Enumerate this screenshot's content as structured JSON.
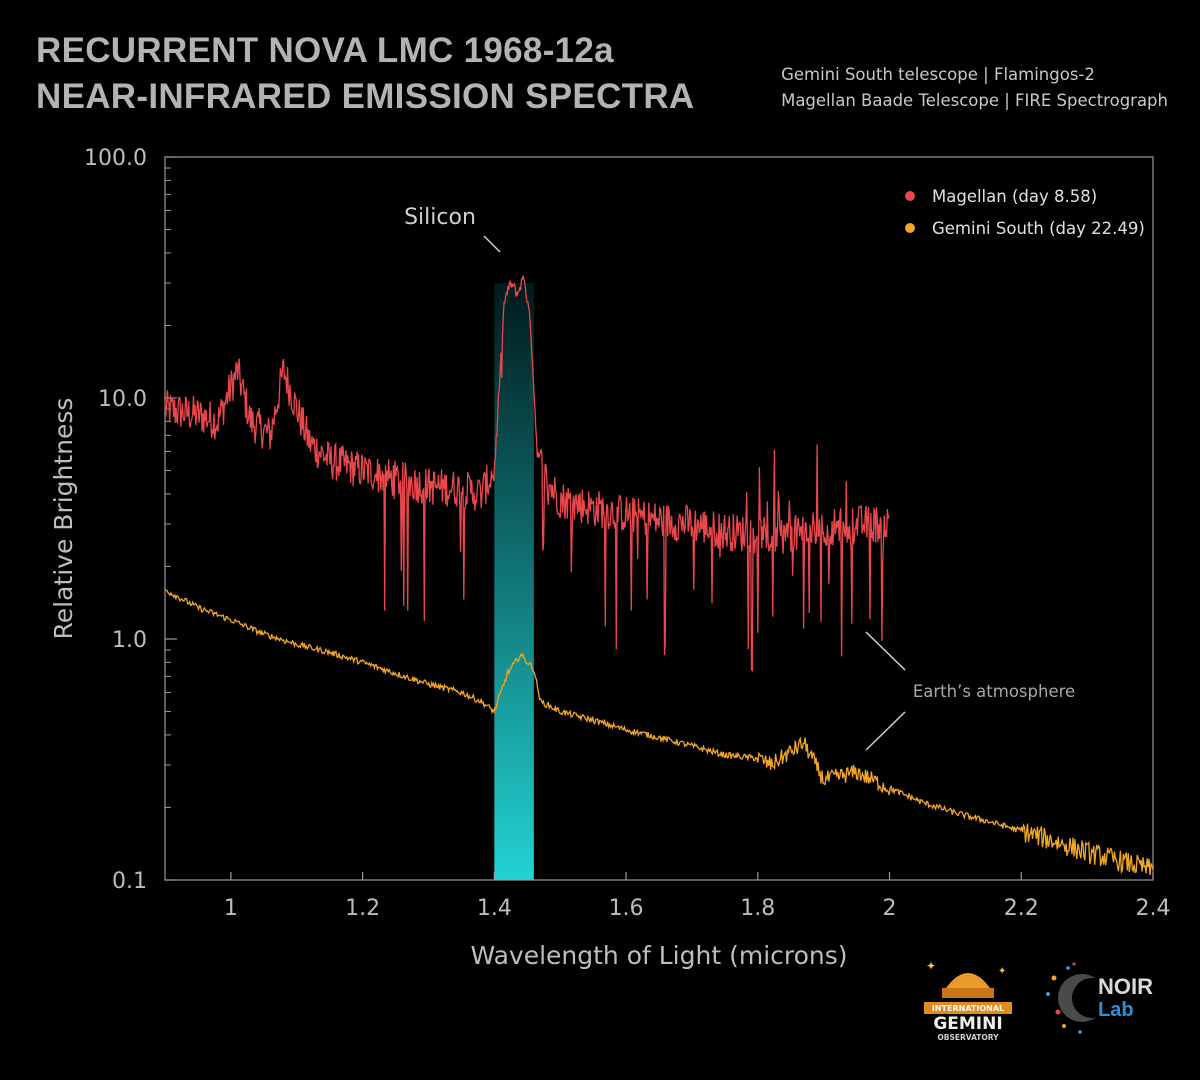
{
  "header": {
    "title_line1": "RECURRENT NOVA LMC 1968-12a",
    "title_line2": "NEAR-INFRARED EMISSION SPECTRA",
    "credit_line1": "Gemini South telescope | Flamingos-2",
    "credit_line2": "Magellan Baade Telescope | FIRE Spectrograph"
  },
  "logos": {
    "gemini": {
      "line1": "INTERNATIONAL",
      "line2": "GEMINI",
      "line3": "OBSERVATORY"
    },
    "noirlab": {
      "line1": "NOIR",
      "line2": "Lab"
    }
  },
  "colors": {
    "magellan": "#e8474b",
    "gemini": "#f2a623",
    "silicon_band_top": "#001a1c",
    "silicon_band_bottom": "#22d3d3",
    "axis": "#9a9a9a",
    "text": "#bdbdbd"
  },
  "chart_data": {
    "type": "line",
    "xlabel": "Wavelength of Light (microns)",
    "ylabel": "Relative Brightness",
    "xlim": [
      0.9,
      2.4
    ],
    "ylim": [
      0.1,
      100.0
    ],
    "yscale": "log",
    "x_ticks": [
      1,
      1.2,
      1.4,
      1.6,
      1.8,
      2,
      2.2,
      2.4
    ],
    "x_tick_labels": [
      "1",
      "1.2",
      "1.4",
      "1.6",
      "1.8",
      "2",
      "2.2",
      "2.4"
    ],
    "y_ticks": [
      0.1,
      1.0,
      10.0,
      100.0
    ],
    "y_tick_labels": [
      "0.1",
      "1.0",
      "10.0",
      "100.0"
    ],
    "legend_position": "top-right",
    "series": [
      {
        "name": "Magellan (day 8.58)",
        "color": "#e8474b",
        "x_range": [
          0.9,
          2.0
        ],
        "points": [
          [
            0.9,
            9.0
          ],
          [
            0.95,
            8.5
          ],
          [
            0.98,
            8.0
          ],
          [
            1.01,
            13.0
          ],
          [
            1.03,
            8.0
          ],
          [
            1.06,
            7.0
          ],
          [
            1.08,
            13.0
          ],
          [
            1.1,
            9.0
          ],
          [
            1.12,
            6.5
          ],
          [
            1.15,
            5.5
          ],
          [
            1.2,
            5.0
          ],
          [
            1.25,
            4.6
          ],
          [
            1.3,
            4.3
          ],
          [
            1.35,
            4.2
          ],
          [
            1.38,
            4.0
          ],
          [
            1.4,
            5.0
          ],
          [
            1.415,
            25.0
          ],
          [
            1.425,
            30.0
          ],
          [
            1.435,
            27.0
          ],
          [
            1.445,
            32.0
          ],
          [
            1.455,
            20.0
          ],
          [
            1.465,
            6.0
          ],
          [
            1.48,
            4.5
          ],
          [
            1.5,
            3.8
          ],
          [
            1.55,
            3.5
          ],
          [
            1.6,
            3.3
          ],
          [
            1.65,
            3.1
          ],
          [
            1.7,
            3.0
          ],
          [
            1.75,
            2.8
          ],
          [
            1.8,
            2.7
          ],
          [
            1.85,
            2.7
          ],
          [
            1.9,
            2.9
          ],
          [
            1.95,
            3.0
          ],
          [
            2.0,
            3.0
          ]
        ]
      },
      {
        "name": "Gemini South (day 22.49)",
        "color": "#f2a623",
        "x_range": [
          0.9,
          2.4
        ],
        "points": [
          [
            0.9,
            1.6
          ],
          [
            0.95,
            1.35
          ],
          [
            1.0,
            1.2
          ],
          [
            1.05,
            1.05
          ],
          [
            1.1,
            0.95
          ],
          [
            1.15,
            0.88
          ],
          [
            1.2,
            0.8
          ],
          [
            1.25,
            0.72
          ],
          [
            1.3,
            0.65
          ],
          [
            1.35,
            0.6
          ],
          [
            1.38,
            0.55
          ],
          [
            1.4,
            0.5
          ],
          [
            1.42,
            0.72
          ],
          [
            1.44,
            0.86
          ],
          [
            1.46,
            0.75
          ],
          [
            1.47,
            0.55
          ],
          [
            1.5,
            0.5
          ],
          [
            1.55,
            0.46
          ],
          [
            1.6,
            0.42
          ],
          [
            1.65,
            0.39
          ],
          [
            1.7,
            0.36
          ],
          [
            1.75,
            0.33
          ],
          [
            1.8,
            0.32
          ],
          [
            1.82,
            0.3
          ],
          [
            1.87,
            0.37
          ],
          [
            1.9,
            0.26
          ],
          [
            1.95,
            0.28
          ],
          [
            2.0,
            0.24
          ],
          [
            2.05,
            0.21
          ],
          [
            2.1,
            0.19
          ],
          [
            2.15,
            0.175
          ],
          [
            2.2,
            0.16
          ],
          [
            2.25,
            0.145
          ],
          [
            2.3,
            0.13
          ],
          [
            2.35,
            0.12
          ],
          [
            2.4,
            0.11
          ]
        ]
      }
    ],
    "highlight_band": {
      "x_range": [
        1.4,
        1.46
      ]
    },
    "annotations": [
      {
        "text": "Silicon",
        "x": 1.4,
        "y": 40.0
      },
      {
        "text": "Earth’s atmosphere",
        "x": 2.06,
        "y": 0.6
      }
    ]
  }
}
